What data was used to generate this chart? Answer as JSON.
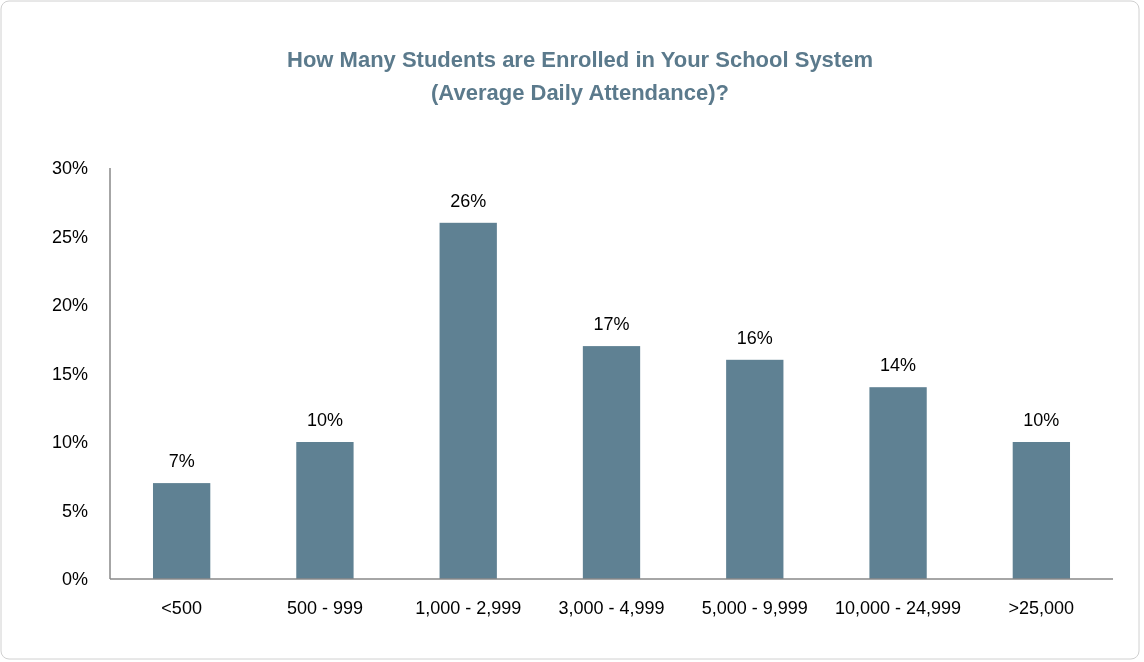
{
  "chart_data": {
    "type": "bar",
    "title": "How Many Students are Enrolled in Your School System\n(Average Daily Attendance)?",
    "categories": [
      "<500",
      "500 - 999",
      "1,000 - 2,999",
      "3,000 - 4,999",
      "5,000 - 9,999",
      "10,000 - 24,999",
      ">25,000"
    ],
    "values": [
      7,
      10,
      26,
      17,
      16,
      14,
      10
    ],
    "value_labels": [
      "7%",
      "10%",
      "26%",
      "17%",
      "16%",
      "14%",
      "10%"
    ],
    "color": "#5f8193",
    "ylim": [
      0,
      30
    ],
    "yticks": [
      {
        "value": 0,
        "label": "0%"
      },
      {
        "value": 5,
        "label": "5%"
      },
      {
        "value": 10,
        "label": "10%"
      },
      {
        "value": 15,
        "label": "15%"
      },
      {
        "value": 20,
        "label": "20%"
      },
      {
        "value": 25,
        "label": "25%"
      },
      {
        "value": 30,
        "label": "30%"
      }
    ],
    "grid": false
  }
}
